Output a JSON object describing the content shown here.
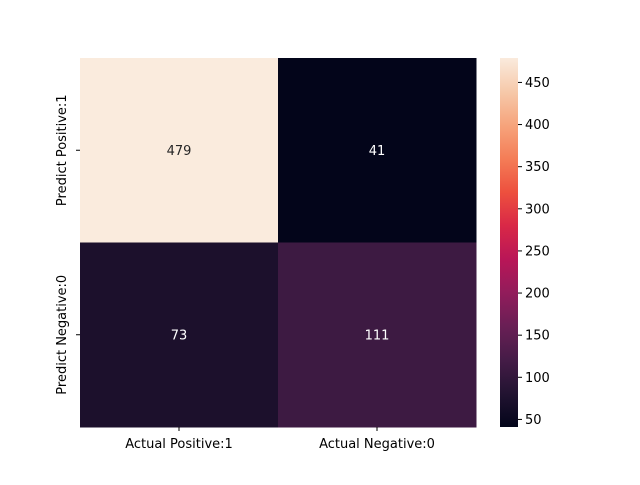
{
  "chart_data": {
    "type": "heatmap",
    "x_categories": [
      "Actual Positive:1",
      "Actual Negative:0"
    ],
    "y_categories": [
      "Predict Positive:1",
      "Predict Negative:0"
    ],
    "values": [
      [
        479,
        41
      ],
      [
        73,
        111
      ]
    ],
    "annotations": [
      "479",
      "41",
      "73",
      "111"
    ],
    "title": "",
    "xlabel": "",
    "ylabel": "",
    "colormap": "rocket",
    "colorbar": {
      "ticks": [
        50,
        100,
        150,
        200,
        250,
        300,
        350,
        400,
        450
      ],
      "tick_labels": [
        "50",
        "100",
        "150",
        "200",
        "250",
        "300",
        "350",
        "400",
        "450"
      ],
      "range": [
        41,
        479
      ]
    },
    "annotation_colors": {
      "light": "#262626",
      "dark": "#ffffff"
    },
    "stops": [
      "#03051a",
      "#221331",
      "#451c47",
      "#691f55",
      "#921c5b",
      "#b91657",
      "#d92847",
      "#ed503e",
      "#f47d57",
      "#f6a47c",
      "#f6c9aa",
      "#faebdd"
    ]
  }
}
